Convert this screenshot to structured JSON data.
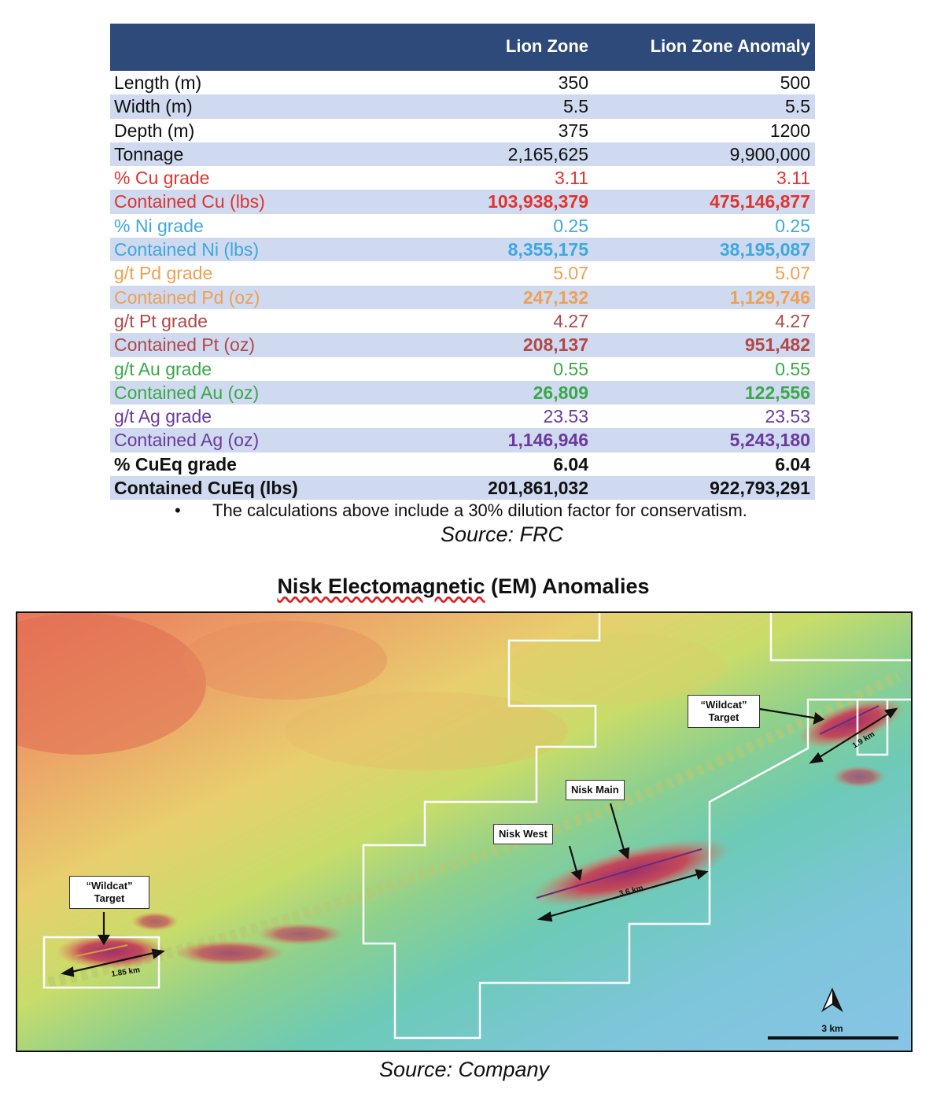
{
  "table": {
    "headers": [
      "Lion Zone",
      "Lion Zone Anomaly"
    ],
    "rows": [
      {
        "label": "Length (m)",
        "v1": "350",
        "v2": "500",
        "color": "black",
        "shade": false,
        "bold": false
      },
      {
        "label": "Width (m)",
        "v1": "5.5",
        "v2": "5.5",
        "color": "black",
        "shade": true,
        "bold": false
      },
      {
        "label": "Depth (m)",
        "v1": "375",
        "v2": "1200",
        "color": "black",
        "shade": false,
        "bold": false
      },
      {
        "label": "Tonnage",
        "v1": "2,165,625",
        "v2": "9,900,000",
        "color": "black",
        "shade": true,
        "bold": false
      },
      {
        "label": "% Cu grade",
        "v1": "3.11",
        "v2": "3.11",
        "color": "red",
        "shade": false,
        "bold": false
      },
      {
        "label": "Contained Cu (lbs)",
        "v1": "103,938,379",
        "v2": "475,146,877",
        "color": "red",
        "shade": true,
        "bold": true
      },
      {
        "label": "% Ni grade",
        "v1": "0.25",
        "v2": "0.25",
        "color": "blue",
        "shade": false,
        "bold": false
      },
      {
        "label": "Contained Ni (lbs)",
        "v1": "8,355,175",
        "v2": "38,195,087",
        "color": "blue",
        "shade": true,
        "bold": true
      },
      {
        "label": "g/t Pd grade",
        "v1": "5.07",
        "v2": "5.07",
        "color": "orange",
        "shade": false,
        "bold": false
      },
      {
        "label": "Contained Pd (oz)",
        "v1": "247,132",
        "v2": "1,129,746",
        "color": "orange",
        "shade": true,
        "bold": true
      },
      {
        "label": "g/t Pt grade",
        "v1": "4.27",
        "v2": "4.27",
        "color": "brown",
        "shade": false,
        "bold": false
      },
      {
        "label": "Contained Pt (oz)",
        "v1": "208,137",
        "v2": "951,482",
        "color": "brown",
        "shade": true,
        "bold": true
      },
      {
        "label": "g/t Au grade",
        "v1": "0.55",
        "v2": "0.55",
        "color": "green",
        "shade": false,
        "bold": false
      },
      {
        "label": "Contained Au (oz)",
        "v1": "26,809",
        "v2": "122,556",
        "color": "green",
        "shade": true,
        "bold": true
      },
      {
        "label": "g/t Ag grade",
        "v1": "23.53",
        "v2": "23.53",
        "color": "purple",
        "shade": false,
        "bold": false
      },
      {
        "label": "Contained Ag (oz)",
        "v1": "1,146,946",
        "v2": "5,243,180",
        "color": "purple",
        "shade": true,
        "bold": true
      },
      {
        "label": "% CuEq grade",
        "v1": "6.04",
        "v2": "6.04",
        "color": "black",
        "shade": false,
        "bold": true,
        "strong": true
      },
      {
        "label": "Contained CuEq (lbs)",
        "v1": "201,861,032",
        "v2": "922,793,291",
        "color": "black",
        "shade": true,
        "bold": true,
        "strong": true
      }
    ],
    "note": "The calculations above include a 30% dilution factor for conservatism.",
    "bullet": "•",
    "source": "Source: FRC"
  },
  "map": {
    "title_underlined": "Nisk Electomagnetic",
    "title_rest": " (EM) Anomalies",
    "labels": {
      "wildcat_left": [
        "“Wildcat”",
        "Target"
      ],
      "wildcat_right": [
        "“Wildcat”",
        "Target"
      ],
      "nisk_main": "Nisk Main",
      "nisk_west": "Nisk West",
      "dist_left": "1.85 km",
      "dist_mid": "3.6 km",
      "dist_right": "1.9 km",
      "scale": "3 km"
    },
    "source": "Source: Company"
  },
  "colors": {
    "header_bg": "#2e4a7a",
    "row_shade": "#cfd9ef",
    "red": "#e0342e",
    "blue": "#3ca8e0",
    "orange": "#f0a050",
    "brown": "#b24848",
    "green": "#3aa848",
    "purple": "#6a3a9e"
  }
}
